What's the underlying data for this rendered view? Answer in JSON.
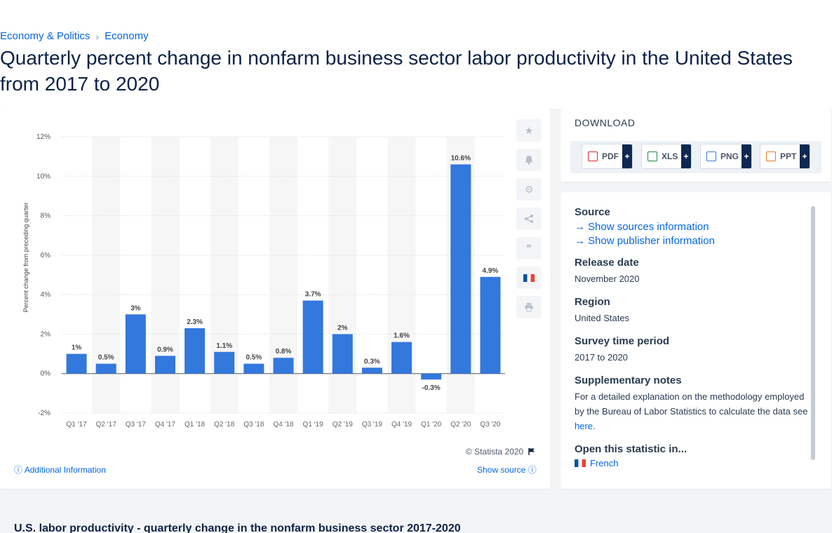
{
  "breadcrumb": {
    "item1": "Economy & Politics",
    "separator": "›",
    "item2": "Economy"
  },
  "page_title": "Quarterly percent change in nonfarm business sector labor productivity in the United States from 2017 to 2020",
  "chart_data": {
    "type": "bar",
    "categories": [
      "Q1 '17",
      "Q2 '17",
      "Q3 '17",
      "Q4 '17",
      "Q1 '18",
      "Q2 '18",
      "Q3 '18",
      "Q4 '18",
      "Q1 '19",
      "Q2 '19",
      "Q3 '19",
      "Q4 '19",
      "Q1 '20",
      "Q2 '20",
      "Q3 '20"
    ],
    "values": [
      1,
      0.5,
      3,
      0.9,
      2.3,
      1.1,
      0.5,
      0.8,
      3.7,
      2,
      0.3,
      1.6,
      -0.3,
      10.6,
      4.9
    ],
    "data_labels": [
      "1%",
      "0.5%",
      "3%",
      "0.9%",
      "2.3%",
      "1.1%",
      "0.5%",
      "0.8%",
      "3.7%",
      "2%",
      "0.3%",
      "1.6%",
      "-0.3%",
      "10.6%",
      "4.9%"
    ],
    "ylabel": "Percent change from preceding quarter",
    "yticks": [
      12,
      10,
      8,
      6,
      4,
      2,
      0,
      -2
    ],
    "ytick_labels": [
      "12%",
      "10%",
      "8%",
      "6%",
      "4%",
      "2%",
      "0%",
      "-2%"
    ],
    "ylim": [
      -2,
      12
    ],
    "bar_color": "#3378dc",
    "band_color": "#f6f6f6",
    "grid": true
  },
  "tools": {
    "icons": [
      "star-icon",
      "bell-icon",
      "gear-icon",
      "share-icon",
      "quote-icon",
      "french-flag-icon",
      "print-icon"
    ]
  },
  "chart_footer": {
    "copyright": "© Statista 2020",
    "additional_info": "Additional Information",
    "show_source": "Show source"
  },
  "download": {
    "heading": "DOWNLOAD",
    "buttons": [
      {
        "label": "PDF",
        "plus": "+",
        "color": "#d9272e"
      },
      {
        "label": "XLS",
        "plus": "+",
        "color": "#1e8a44"
      },
      {
        "label": "PNG",
        "plus": "+",
        "color": "#3a7bd5"
      },
      {
        "label": "PPT",
        "plus": "+",
        "color": "#e07a24"
      }
    ]
  },
  "info": {
    "source_heading": "Source",
    "show_sources": "Show sources information",
    "show_publisher": "Show publisher information",
    "release_heading": "Release date",
    "release_value": "November 2020",
    "region_heading": "Region",
    "region_value": "United States",
    "survey_heading": "Survey time period",
    "survey_value": "2017 to 2020",
    "supp_heading": "Supplementary notes",
    "supp_text": "For a detailed explanation on the methodology employed by the Bureau of Labor Statistics to calculate the data see",
    "supp_link": "here",
    "supp_end": ".",
    "open_heading": "Open this statistic in...",
    "open_lang": "French"
  },
  "bottom_title": "U.S. labor productivity - quarterly change in the nonfarm business sector 2017-2020"
}
